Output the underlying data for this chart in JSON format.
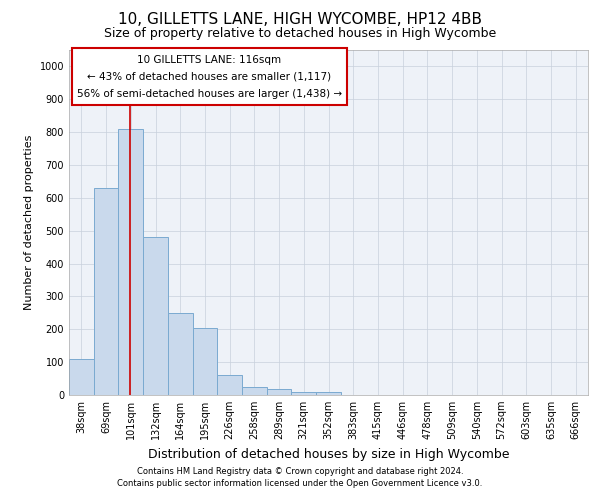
{
  "title": "10, GILLETTS LANE, HIGH WYCOMBE, HP12 4BB",
  "subtitle": "Size of property relative to detached houses in High Wycombe",
  "xlabel": "Distribution of detached houses by size in High Wycombe",
  "ylabel": "Number of detached properties",
  "footer_line1": "Contains HM Land Registry data © Crown copyright and database right 2024.",
  "footer_line2": "Contains public sector information licensed under the Open Government Licence v3.0.",
  "categories": [
    "38sqm",
    "69sqm",
    "101sqm",
    "132sqm",
    "164sqm",
    "195sqm",
    "226sqm",
    "258sqm",
    "289sqm",
    "321sqm",
    "352sqm",
    "383sqm",
    "415sqm",
    "446sqm",
    "478sqm",
    "509sqm",
    "540sqm",
    "572sqm",
    "603sqm",
    "635sqm",
    "666sqm"
  ],
  "values": [
    110,
    630,
    810,
    480,
    250,
    205,
    60,
    25,
    17,
    10,
    10,
    0,
    0,
    0,
    0,
    0,
    0,
    0,
    0,
    0,
    0
  ],
  "bar_color": "#c9d9ec",
  "bar_edge_color": "#7aaad0",
  "ylim": [
    0,
    1050
  ],
  "yticks": [
    0,
    100,
    200,
    300,
    400,
    500,
    600,
    700,
    800,
    900,
    1000
  ],
  "red_line_x": 2.0,
  "annotation_text_line1": "10 GILLETTS LANE: 116sqm",
  "annotation_text_line2": "← 43% of detached houses are smaller (1,117)",
  "annotation_text_line3": "56% of semi-detached houses are larger (1,438) →",
  "annotation_box_color": "#cc0000",
  "plot_bg_color": "#eef2f8",
  "grid_color": "#c8d0dc",
  "title_fontsize": 11,
  "subtitle_fontsize": 9,
  "tick_fontsize": 7,
  "ylabel_fontsize": 8,
  "xlabel_fontsize": 9,
  "annotation_fontsize": 7.5
}
